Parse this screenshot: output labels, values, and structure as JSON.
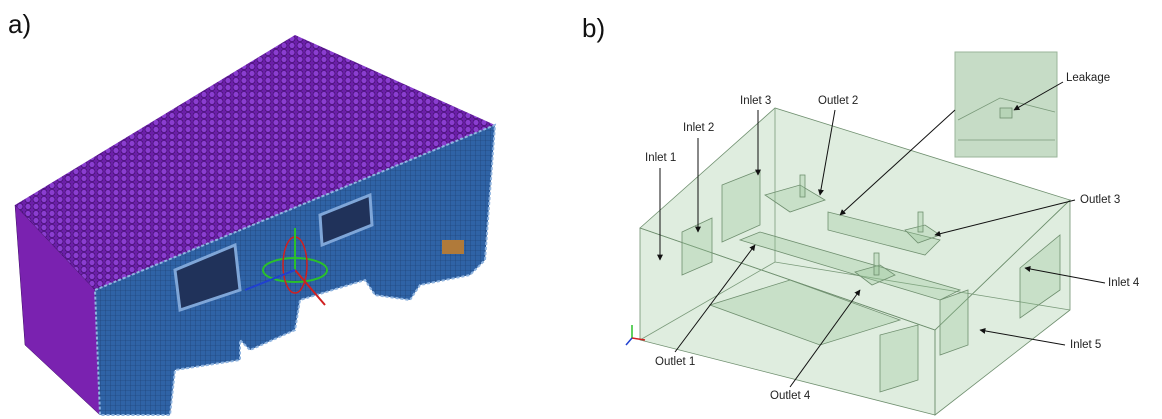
{
  "panels": [
    "a)",
    "b)"
  ],
  "callouts": [
    "Leakage",
    "Inlet 3",
    "Outlet 2",
    "Inlet 2",
    "Inlet 1",
    "Outlet 3",
    "Inlet 4",
    "Inlet 5",
    "Outlet 1",
    "Outlet 4"
  ]
}
